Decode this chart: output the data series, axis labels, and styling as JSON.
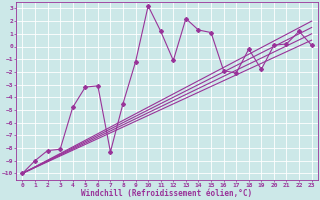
{
  "bg_color": "#cce8e8",
  "grid_color": "#ffffff",
  "line_color": "#993399",
  "marker_color": "#993399",
  "xlabel": "Windchill (Refroidissement éolien,°C)",
  "xlim": [
    -0.5,
    23.5
  ],
  "ylim": [
    -10.5,
    3.5
  ],
  "xticks": [
    0,
    1,
    2,
    3,
    4,
    5,
    6,
    7,
    8,
    9,
    10,
    11,
    12,
    13,
    14,
    15,
    16,
    17,
    18,
    19,
    20,
    21,
    22,
    23
  ],
  "yticks": [
    3,
    2,
    1,
    0,
    -1,
    -2,
    -3,
    -4,
    -5,
    -6,
    -7,
    -8,
    -9,
    -10
  ],
  "line1_x": [
    0,
    1,
    2,
    3,
    4,
    5,
    6,
    7,
    8,
    9,
    10,
    11,
    12,
    13,
    14,
    15,
    16,
    17,
    18,
    19,
    20,
    21,
    22,
    23
  ],
  "line1_y": [
    -10,
    -9,
    -8.2,
    -8.1,
    -4.8,
    -3.2,
    -3.1,
    -8.3,
    -4.5,
    -1.2,
    3.2,
    1.2,
    -1.1,
    2.2,
    1.3,
    1.1,
    -1.9,
    -2.1,
    -0.2,
    -1.8,
    0.1,
    0.2,
    1.2,
    0.1
  ],
  "line2_x": [
    0,
    23
  ],
  "line2_y": [
    -10,
    2.0
  ],
  "line3_x": [
    0,
    23
  ],
  "line3_y": [
    -10,
    1.5
  ],
  "line4_x": [
    0,
    23
  ],
  "line4_y": [
    -10,
    1.0
  ],
  "line5_x": [
    0,
    23
  ],
  "line5_y": [
    -10,
    0.5
  ]
}
